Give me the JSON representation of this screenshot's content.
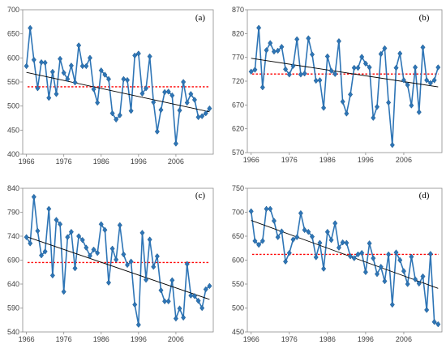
{
  "colors": {
    "series": "#2e75b6",
    "trend": "#000000",
    "mean": "#ff0000",
    "axis": "#8c8c8c"
  },
  "chart_data": [
    {
      "type": "line",
      "panel_label": "(a)",
      "x": [
        1966,
        1967,
        1968,
        1969,
        1970,
        1971,
        1972,
        1973,
        1974,
        1975,
        1976,
        1977,
        1978,
        1979,
        1980,
        1981,
        1982,
        1983,
        1984,
        1985,
        1986,
        1987,
        1988,
        1989,
        1990,
        1991,
        1992,
        1993,
        1994,
        1995,
        1996,
        1997,
        1998,
        1999,
        2000,
        2001,
        2002,
        2003,
        2004,
        2005,
        2006,
        2007,
        2008,
        2009,
        2010,
        2011,
        2012,
        2013,
        2014,
        2015
      ],
      "values": [
        583,
        662,
        596,
        537,
        591,
        590,
        517,
        571,
        525,
        598,
        569,
        556,
        584,
        549,
        626,
        583,
        583,
        600,
        535,
        507,
        574,
        565,
        556,
        485,
        472,
        481,
        556,
        554,
        490,
        605,
        609,
        526,
        537,
        603,
        508,
        447,
        492,
        529,
        530,
        522,
        422,
        491,
        550,
        507,
        525,
        513,
        477,
        479,
        485,
        495
      ],
      "trend": [
        570,
        488
      ],
      "mean": 540,
      "xticks": [
        1966,
        1976,
        1986,
        1996,
        2006
      ],
      "yticks": [
        400,
        450,
        500,
        550,
        600,
        650,
        700
      ],
      "ylim": [
        400,
        700
      ],
      "xlim": [
        1965,
        2016
      ],
      "grid": false
    },
    {
      "type": "line",
      "panel_label": "(b)",
      "x": [
        1966,
        1967,
        1968,
        1969,
        1970,
        1971,
        1972,
        1973,
        1974,
        1975,
        1976,
        1977,
        1978,
        1979,
        1980,
        1981,
        1982,
        1983,
        1984,
        1985,
        1986,
        1987,
        1988,
        1989,
        1990,
        1991,
        1992,
        1993,
        1994,
        1995,
        1996,
        1997,
        1998,
        1999,
        2000,
        2001,
        2002,
        2003,
        2004,
        2005,
        2006,
        2007,
        2008,
        2009,
        2010,
        2011,
        2012,
        2013,
        2014,
        2015
      ],
      "values": [
        740,
        744,
        832,
        707,
        785,
        800,
        782,
        784,
        792,
        745,
        734,
        752,
        808,
        734,
        736,
        810,
        776,
        721,
        722,
        664,
        772,
        742,
        735,
        804,
        677,
        652,
        692,
        748,
        748,
        771,
        757,
        749,
        643,
        666,
        777,
        789,
        675,
        586,
        748,
        778,
        722,
        712,
        669,
        749,
        655,
        791,
        722,
        716,
        722,
        749
      ],
      "trend": [
        768,
        708
      ],
      "mean": 735,
      "xticks": [
        1966,
        1976,
        1986,
        1996,
        2006
      ],
      "yticks": [
        570,
        620,
        670,
        720,
        770,
        820,
        870
      ],
      "ylim": [
        570,
        870
      ],
      "xlim": [
        1965,
        2016
      ],
      "grid": false
    },
    {
      "type": "line",
      "panel_label": "(c)",
      "x": [
        1966,
        1967,
        1968,
        1969,
        1970,
        1971,
        1972,
        1973,
        1974,
        1975,
        1976,
        1977,
        1978,
        1979,
        1980,
        1981,
        1982,
        1983,
        1984,
        1985,
        1986,
        1987,
        1988,
        1989,
        1990,
        1991,
        1992,
        1993,
        1994,
        1995,
        1996,
        1997,
        1998,
        1999,
        2000,
        2001,
        2002,
        2003,
        2004,
        2005,
        2006,
        2007,
        2008,
        2009,
        2010,
        2011,
        2012,
        2013,
        2014,
        2015
      ],
      "values": [
        738,
        725,
        822,
        751,
        700,
        708,
        797,
        658,
        774,
        765,
        624,
        738,
        749,
        673,
        740,
        732,
        716,
        699,
        712,
        705,
        765,
        753,
        643,
        714,
        691,
        763,
        702,
        680,
        687,
        597,
        555,
        747,
        649,
        733,
        676,
        698,
        627,
        604,
        604,
        648,
        568,
        589,
        570,
        682,
        616,
        615,
        605,
        590,
        629,
        636
      ],
      "trend": [
        739,
        608
      ],
      "mean": 685,
      "xticks": [
        1966,
        1976,
        1986,
        1996,
        2006
      ],
      "yticks": [
        540,
        590,
        640,
        690,
        740,
        790,
        840
      ],
      "ylim": [
        540,
        840
      ],
      "xlim": [
        1965,
        2016
      ],
      "grid": false
    },
    {
      "type": "line",
      "panel_label": "(d)",
      "x": [
        1966,
        1967,
        1968,
        1969,
        1970,
        1971,
        1972,
        1973,
        1974,
        1975,
        1976,
        1977,
        1978,
        1979,
        1980,
        1981,
        1982,
        1983,
        1984,
        1985,
        1986,
        1987,
        1988,
        1989,
        1990,
        1991,
        1992,
        1993,
        1994,
        1995,
        1996,
        1997,
        1998,
        1999,
        2000,
        2001,
        2002,
        2003,
        2004,
        2005,
        2006,
        2007,
        2008,
        2009,
        2010,
        2011,
        2012,
        2013,
        2014,
        2015
      ],
      "values": [
        702,
        640,
        632,
        640,
        707,
        707,
        682,
        648,
        660,
        597,
        615,
        643,
        648,
        698,
        663,
        659,
        649,
        606,
        636,
        582,
        659,
        642,
        677,
        626,
        637,
        636,
        608,
        604,
        612,
        615,
        575,
        635,
        604,
        571,
        586,
        556,
        612,
        507,
        616,
        600,
        577,
        550,
        607,
        560,
        551,
        566,
        496,
        613,
        471,
        466
      ],
      "trend": [
        683,
        541
      ],
      "mean": 612,
      "xticks": [
        1966,
        1976,
        1986,
        1996,
        2006
      ],
      "yticks": [
        450,
        500,
        550,
        600,
        650,
        700,
        750
      ],
      "ylim": [
        450,
        750
      ],
      "xlim": [
        1965,
        2016
      ],
      "grid": false
    }
  ]
}
